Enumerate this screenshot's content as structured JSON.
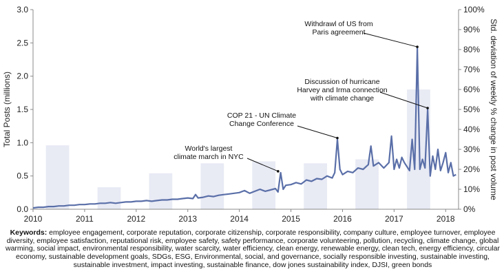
{
  "chart_data": {
    "type": "line",
    "ylabel": "Total Posts (millions)",
    "y2label": "Std. deviation of weekly % change in post volume",
    "ylim": [
      0,
      3.0
    ],
    "y2lim": [
      0,
      1.0
    ],
    "xlim": [
      2010,
      2018.25
    ],
    "x_ticks": [
      "2010",
      "2011",
      "2012",
      "2013",
      "2014",
      "2015",
      "2016",
      "2017",
      "2018"
    ],
    "y_ticks": [
      "0.0",
      "0.5",
      "1.0",
      "1.5",
      "2.0",
      "2.5",
      "3.0"
    ],
    "y2_ticks": [
      "0%",
      "10%",
      "20%",
      "30%",
      "40%",
      "50%",
      "60%",
      "70%",
      "80%",
      "90%",
      "100%"
    ],
    "grid": false,
    "series": [
      {
        "type": "line",
        "color": "#5a6fa8",
        "x": [
          2010.0,
          2010.1,
          2010.2,
          2010.3,
          2010.4,
          2010.5,
          2010.6,
          2010.7,
          2010.8,
          2010.9,
          2011.0,
          2011.1,
          2011.2,
          2011.3,
          2011.4,
          2011.5,
          2011.6,
          2011.7,
          2011.8,
          2011.9,
          2012.0,
          2012.1,
          2012.2,
          2012.3,
          2012.4,
          2012.5,
          2012.6,
          2012.7,
          2012.8,
          2012.9,
          2013.0,
          2013.1,
          2013.15,
          2013.2,
          2013.3,
          2013.4,
          2013.5,
          2013.6,
          2013.7,
          2013.8,
          2013.9,
          2014.0,
          2014.1,
          2014.2,
          2014.3,
          2014.4,
          2014.5,
          2014.6,
          2014.7,
          2014.75,
          2014.8,
          2014.85,
          2014.9,
          2015.0,
          2015.1,
          2015.2,
          2015.3,
          2015.4,
          2015.5,
          2015.6,
          2015.7,
          2015.8,
          2015.85,
          2015.9,
          2015.95,
          2016.0,
          2016.1,
          2016.2,
          2016.3,
          2016.4,
          2016.5,
          2016.55,
          2016.6,
          2016.7,
          2016.8,
          2016.9,
          2016.95,
          2017.0,
          2017.05,
          2017.1,
          2017.15,
          2017.2,
          2017.3,
          2017.35,
          2017.4,
          2017.45,
          2017.5,
          2017.55,
          2017.6,
          2017.65,
          2017.7,
          2017.75,
          2017.8,
          2017.85,
          2017.9,
          2017.95,
          2018.0,
          2018.05,
          2018.1,
          2018.15,
          2018.2
        ],
        "values": [
          0.02,
          0.03,
          0.03,
          0.04,
          0.04,
          0.05,
          0.05,
          0.06,
          0.06,
          0.07,
          0.07,
          0.08,
          0.08,
          0.09,
          0.09,
          0.1,
          0.09,
          0.1,
          0.11,
          0.11,
          0.12,
          0.12,
          0.13,
          0.12,
          0.13,
          0.14,
          0.14,
          0.15,
          0.15,
          0.16,
          0.17,
          0.16,
          0.22,
          0.17,
          0.18,
          0.2,
          0.19,
          0.21,
          0.22,
          0.23,
          0.24,
          0.25,
          0.28,
          0.24,
          0.27,
          0.3,
          0.27,
          0.29,
          0.31,
          0.26,
          0.55,
          0.3,
          0.36,
          0.37,
          0.4,
          0.38,
          0.44,
          0.42,
          0.46,
          0.45,
          0.5,
          0.47,
          0.55,
          1.05,
          0.6,
          0.52,
          0.57,
          0.55,
          0.62,
          0.6,
          0.67,
          0.95,
          0.65,
          0.7,
          0.62,
          0.7,
          1.1,
          0.6,
          0.75,
          0.62,
          0.78,
          0.7,
          0.58,
          1.05,
          0.6,
          2.42,
          0.6,
          0.75,
          0.62,
          1.5,
          0.5,
          0.8,
          0.6,
          0.9,
          0.58,
          0.7,
          0.85,
          0.55,
          0.7,
          0.5,
          0.52
        ]
      },
      {
        "type": "bar",
        "color": "#e8eaf4",
        "axis": "right",
        "x_start": [
          2010.25,
          2011.25,
          2012.25,
          2013.25,
          2014.25,
          2015.25,
          2016.25,
          2017.25
        ],
        "x_end": [
          2010.7,
          2011.7,
          2012.7,
          2013.7,
          2014.7,
          2015.7,
          2016.7,
          2017.7
        ],
        "values": [
          0.32,
          0.11,
          0.18,
          0.23,
          0.24,
          0.23,
          0.25,
          0.6
        ]
      }
    ],
    "annotations": [
      {
        "lines": [
          "World's largest",
          "climate march in NYC"
        ],
        "x": 2014.75,
        "y": 0.55
      },
      {
        "lines": [
          "COP 21 - UN Climate",
          "Change Conference"
        ],
        "x": 2015.9,
        "y": 1.05
      },
      {
        "lines": [
          "Discussion of hurricane",
          "Harvey and Irma connection",
          "with climate change"
        ],
        "x": 2017.65,
        "y": 1.5
      },
      {
        "lines": [
          "Withdrawl of US from",
          "Paris agreement"
        ],
        "x": 2017.45,
        "y": 2.42
      }
    ]
  },
  "footer": {
    "keywords_label": "Keywords:",
    "keywords_text": " employee engagement, corporate reputation, corporate citizenship, corporate responsibility, company culture, employee turnover, employee diversity, employee satisfaction, reputational risk, employee safety, safety performance, corporate volunteering, pollution, recycling, climate change, global warming, social impact, environmental responsibility, water scarcity, water efficiency, clean energy, renewable energy, clean tech, energy efficiency, circular economy, sustainable development goals, SDGs, ESG, Environmental, social, and governance, socially responsible investing, sustainable investing, sustainable investment, impact investing, sustainable finance, dow jones sustainability index, DJSI, green bonds"
  }
}
